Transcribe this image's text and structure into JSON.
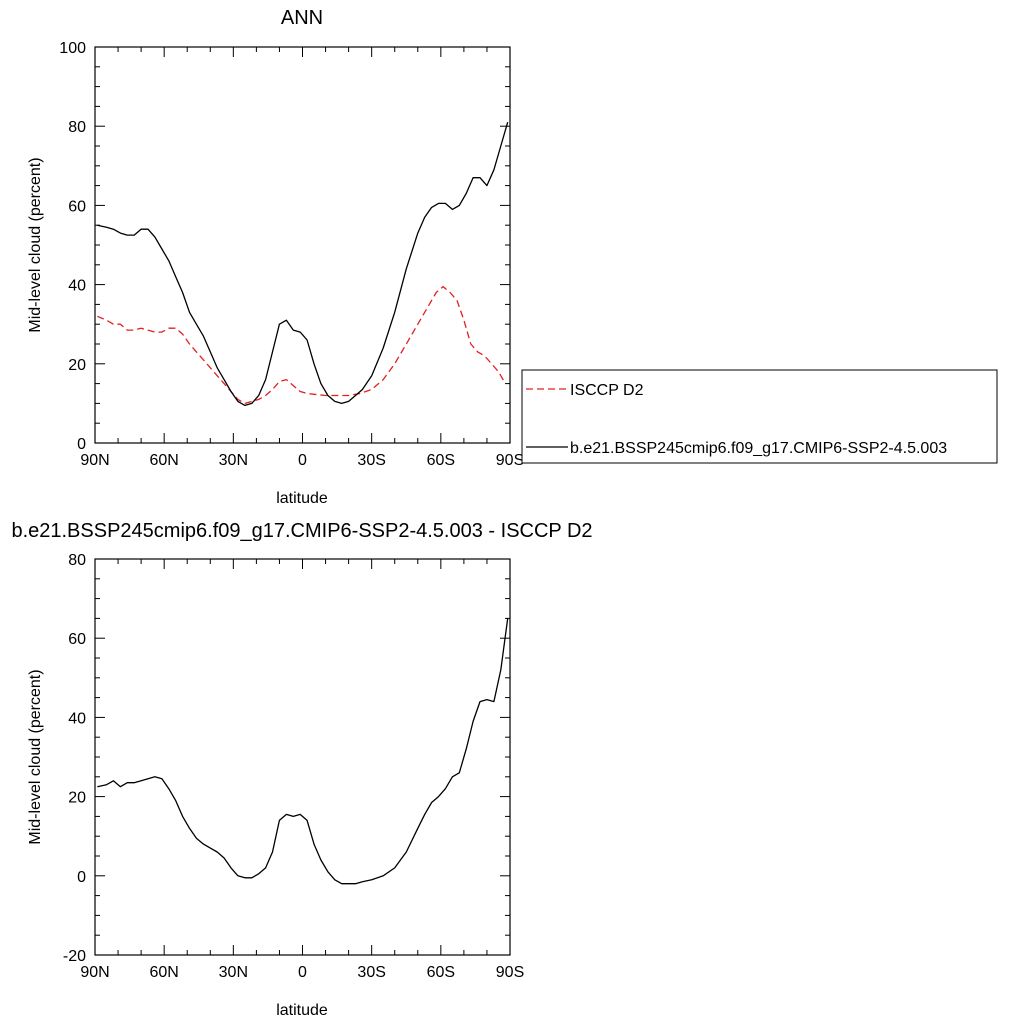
{
  "chart_data": [
    {
      "type": "line",
      "title": "ANN",
      "xlabel": "latitude",
      "ylabel": "Mid-level cloud (percent)",
      "xlim": [
        -90,
        90
      ],
      "ylim": [
        0,
        100
      ],
      "xticks": [
        -90,
        -60,
        -30,
        0,
        30,
        60,
        90
      ],
      "xtick_labels": [
        "90N",
        "60N",
        "30N",
        "0",
        "30S",
        "60S",
        "90S"
      ],
      "yticks": [
        0,
        20,
        40,
        60,
        80,
        100
      ],
      "ytick_labels": [
        "0",
        "20",
        "40",
        "60",
        "80",
        "100"
      ],
      "legend": {
        "placement": "right",
        "entries": [
          {
            "name": "ISCCP D2",
            "color": "#e32020",
            "style": "dashed"
          },
          {
            "name": "b.e21.BSSP245cmip6.f09_g17.CMIP6-SSP2-4.5.003",
            "color": "#000000",
            "style": "solid"
          }
        ]
      },
      "series": [
        {
          "name": "ISCCP D2",
          "color": "#e32020",
          "style": "dashed",
          "x": [
            -89,
            -85,
            -82,
            -79,
            -76,
            -73,
            -70,
            -67,
            -64,
            -61,
            -58,
            -55,
            -52,
            -49,
            -46,
            -43,
            -40,
            -37,
            -34,
            -31,
            -28,
            -25,
            -22,
            -19,
            -16,
            -13,
            -10,
            -7,
            -4,
            -1,
            2,
            5,
            10,
            15,
            20,
            25,
            30,
            35,
            40,
            45,
            50,
            55,
            58,
            61,
            64,
            67,
            70,
            73,
            76,
            79,
            82,
            85,
            88
          ],
          "y": [
            32,
            31,
            30,
            30,
            28.5,
            28.5,
            29,
            28.5,
            28,
            28,
            29,
            29,
            27.5,
            25,
            23,
            21,
            19,
            17,
            15,
            13,
            11,
            10,
            10.5,
            11,
            12,
            13.5,
            15.5,
            16,
            14.5,
            13,
            12.5,
            12.3,
            12,
            12,
            12,
            12.5,
            13.5,
            16,
            20,
            25,
            30,
            35,
            38,
            39.5,
            38,
            36,
            31,
            25,
            23,
            22,
            20,
            18,
            15
          ]
        },
        {
          "name": "b.e21.BSSP245cmip6.f09_g17.CMIP6-SSP2-4.5.003",
          "color": "#000000",
          "style": "solid",
          "x": [
            -89,
            -85,
            -82,
            -79,
            -76,
            -73,
            -70,
            -67,
            -64,
            -61,
            -58,
            -55,
            -52,
            -49,
            -46,
            -43,
            -40,
            -37,
            -34,
            -31,
            -28,
            -25,
            -22,
            -19,
            -16,
            -13,
            -10,
            -7,
            -4,
            -1,
            2,
            5,
            8,
            11,
            14,
            17,
            20,
            23,
            26,
            30,
            35,
            40,
            45,
            50,
            53,
            56,
            59,
            62,
            65,
            68,
            71,
            74,
            77,
            80,
            83,
            86,
            89
          ],
          "y": [
            55,
            54.5,
            54,
            53,
            52.5,
            52.5,
            54,
            54,
            52,
            49,
            46,
            42,
            38,
            33,
            30,
            27,
            23,
            19,
            16,
            13,
            10.5,
            9.5,
            10,
            12,
            16,
            23,
            30,
            31,
            28.5,
            28,
            26,
            20,
            15,
            12,
            10.5,
            10,
            10.5,
            12,
            13.5,
            17,
            24,
            33,
            44,
            53,
            57,
            59.5,
            60.5,
            60.5,
            59,
            60,
            63,
            67,
            67,
            65,
            69,
            75,
            81
          ]
        }
      ]
    },
    {
      "type": "line",
      "title": "b.e21.BSSP245cmip6.f09_g17.CMIP6-SSP2-4.5.003 - ISCCP D2",
      "xlabel": "latitude",
      "ylabel": "Mid-level cloud (percent)",
      "xlim": [
        -90,
        90
      ],
      "ylim": [
        -20,
        80
      ],
      "xticks": [
        -90,
        -60,
        -30,
        0,
        30,
        60,
        90
      ],
      "xtick_labels": [
        "90N",
        "60N",
        "30N",
        "0",
        "30S",
        "60S",
        "90S"
      ],
      "yticks": [
        -20,
        0,
        20,
        40,
        60,
        80
      ],
      "ytick_labels": [
        "-20",
        "0",
        "20",
        "40",
        "60",
        "80"
      ],
      "series": [
        {
          "name": "",
          "color": "#000000",
          "style": "solid",
          "x": [
            -89,
            -85,
            -82,
            -79,
            -76,
            -73,
            -70,
            -67,
            -64,
            -61,
            -58,
            -55,
            -52,
            -49,
            -46,
            -43,
            -40,
            -37,
            -34,
            -31,
            -28,
            -25,
            -22,
            -19,
            -16,
            -13,
            -10,
            -7,
            -4,
            -1,
            2,
            5,
            8,
            11,
            14,
            17,
            20,
            23,
            26,
            30,
            35,
            40,
            45,
            50,
            53,
            56,
            59,
            62,
            65,
            68,
            71,
            74,
            77,
            80,
            83,
            86,
            89
          ],
          "y": [
            22.5,
            23,
            24,
            22.5,
            23.5,
            23.5,
            24,
            24.5,
            25,
            24.5,
            22,
            19,
            15,
            12,
            9.5,
            8,
            7,
            6,
            4.5,
            2,
            0,
            -0.5,
            -0.5,
            0.5,
            2,
            6,
            14,
            15.5,
            15,
            15.5,
            14,
            8,
            4,
            1,
            -1,
            -2,
            -2,
            -2,
            -1.5,
            -1,
            0,
            2,
            6,
            12,
            15.5,
            18.5,
            20,
            22,
            25,
            26,
            32,
            39,
            44,
            44.5,
            44,
            52,
            65
          ]
        }
      ]
    }
  ]
}
